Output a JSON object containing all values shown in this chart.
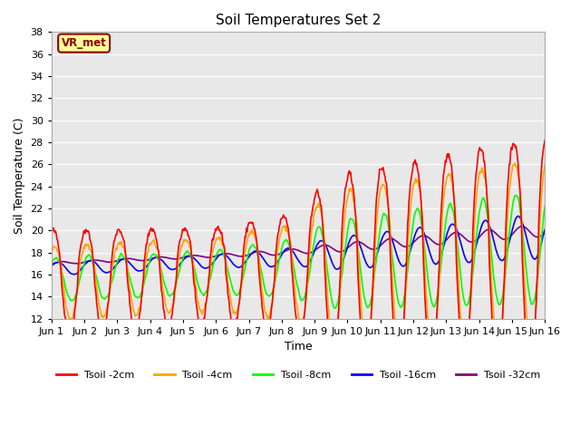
{
  "title": "Soil Temperatures Set 2",
  "xlabel": "Time",
  "ylabel": "Soil Temperature (C)",
  "ylim": [
    12,
    38
  ],
  "yticks": [
    12,
    14,
    16,
    18,
    20,
    22,
    24,
    26,
    28,
    30,
    32,
    34,
    36,
    38
  ],
  "xtick_labels": [
    "Jun 1",
    "Jun 2",
    "Jun 3",
    "Jun 4",
    "Jun 5",
    "Jun 6",
    "Jun 7",
    "Jun 8",
    "Jun 9",
    "Jun 10",
    "Jun 11",
    "Jun 12",
    "Jun 13",
    "Jun 14",
    "Jun 15",
    "Jun 16"
  ],
  "legend_labels": [
    "Tsoil -2cm",
    "Tsoil -4cm",
    "Tsoil -8cm",
    "Tsoil -16cm",
    "Tsoil -32cm"
  ],
  "line_colors": [
    "red",
    "orange",
    "lime",
    "blue",
    "purple"
  ],
  "annotation_text": "VR_met",
  "annotation_color": "#8B0000",
  "annotation_bg": "#FFFF99",
  "bg_color": "#E8E8E8",
  "grid_color": "white",
  "n_days": 15,
  "pts_per_day": 48
}
